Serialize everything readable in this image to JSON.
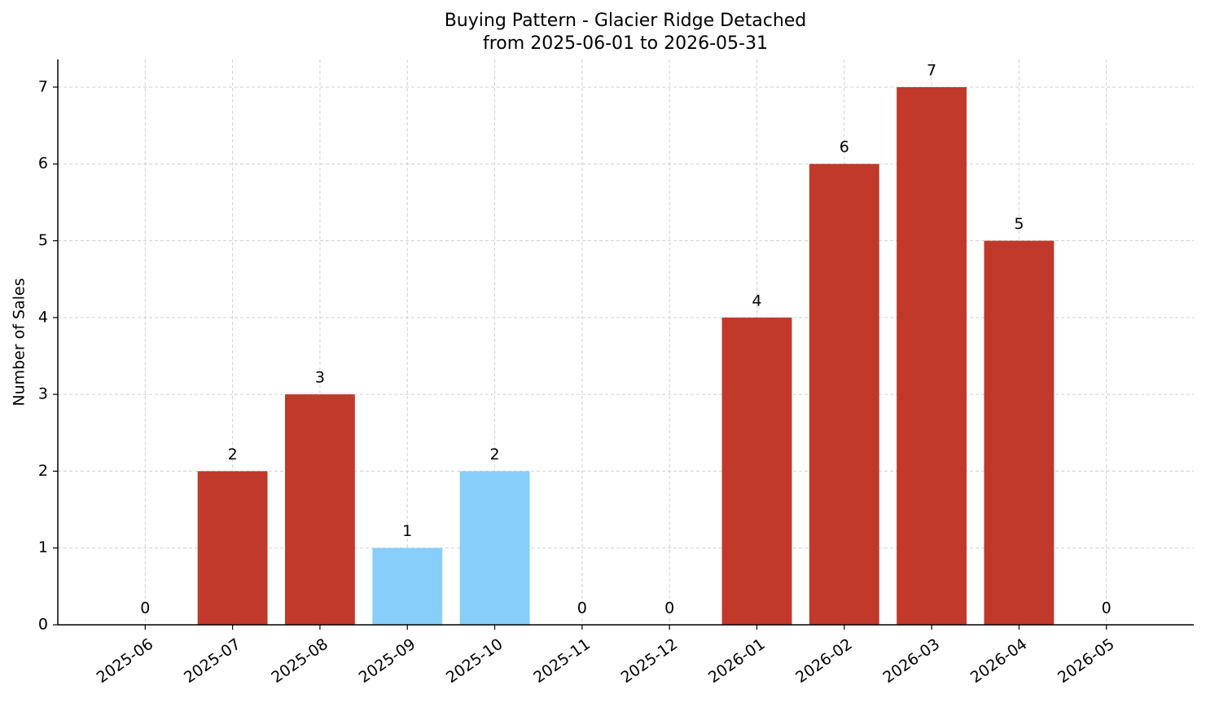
{
  "chart_data": {
    "type": "bar",
    "title": "Buying Pattern - Glacier Ridge Detached",
    "subtitle": "from 2025-06-01 to 2026-05-31",
    "y_label": "Number of Sales",
    "categories": [
      "2025-06",
      "2025-07",
      "2025-08",
      "2025-09",
      "2025-10",
      "2025-11",
      "2025-12",
      "2026-01",
      "2026-02",
      "2026-03",
      "2026-04",
      "2026-05"
    ],
    "values": [
      0,
      2,
      3,
      1,
      2,
      0,
      0,
      4,
      6,
      7,
      5,
      0
    ],
    "colors": [
      "#c0392b",
      "#c0392b",
      "#c0392b",
      "#87cefa",
      "#87cefa",
      "#c0392b",
      "#c0392b",
      "#c0392b",
      "#c0392b",
      "#c0392b",
      "#c0392b",
      "#c0392b"
    ],
    "ylim": [
      0,
      7.36
    ],
    "yticks": [
      0,
      1,
      2,
      3,
      4,
      5,
      6,
      7
    ],
    "grid": true
  }
}
